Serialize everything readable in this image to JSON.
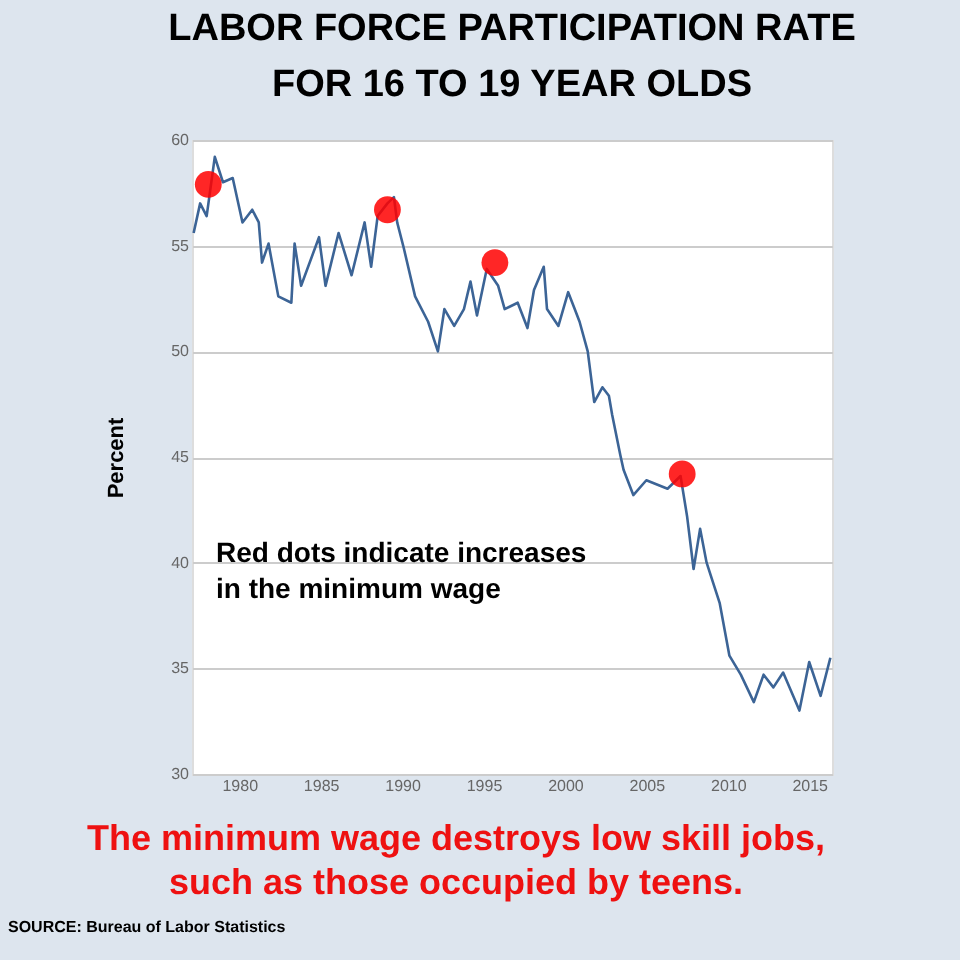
{
  "chart_data": {
    "type": "line",
    "title": [
      "LABOR FORCE PARTICIPATION RATE",
      "FOR 16 TO 19 YEAR OLDS"
    ],
    "ylabel": "Percent",
    "xlim": [
      1977.1,
      2016.4
    ],
    "xticks": [
      1980,
      1985,
      1990,
      1995,
      2000,
      2005,
      2010,
      2015
    ],
    "ylim": [
      30,
      60
    ],
    "yticks": [
      30,
      35,
      40,
      45,
      50,
      55,
      60
    ],
    "grid": "y",
    "series": [
      {
        "color": "#3c6496",
        "marker": "none",
        "line_style": "solid",
        "x": [
          1977.2,
          1977.6,
          1978.0,
          1978.5,
          1979.0,
          1979.6,
          1980.2,
          1980.8,
          1981.2,
          1981.4,
          1981.8,
          1982.4,
          1983.2,
          1983.4,
          1983.8,
          1984.9,
          1985.3,
          1986.1,
          1986.9,
          1987.7,
          1988.1,
          1988.5,
          1989.1,
          1989.5,
          1989.7,
          1990.1,
          1990.8,
          1991.6,
          1992.2,
          1992.6,
          1993.2,
          1993.8,
          1994.2,
          1994.6,
          1995.2,
          1995.9,
          1996.3,
          1997.1,
          1997.7,
          1998.1,
          1998.7,
          1998.9,
          1999.6,
          2000.2,
          2000.6,
          2000.9,
          2001.4,
          2001.8,
          2002.3,
          2002.7,
          2002.9,
          2003.4,
          2003.6,
          2004.2,
          2005.0,
          2006.3,
          2007.1,
          2007.5,
          2007.9,
          2008.3,
          2008.7,
          2009.5,
          2010.1,
          2010.8,
          2011.6,
          2012.2,
          2012.8,
          2013.4,
          2014.4,
          2015.0,
          2015.7,
          2016.3
        ],
        "values": [
          55.6,
          57.0,
          56.4,
          59.2,
          58.0,
          58.2,
          56.1,
          56.7,
          56.1,
          54.2,
          55.1,
          52.6,
          52.3,
          55.1,
          53.1,
          55.4,
          53.1,
          55.6,
          53.6,
          56.1,
          54.0,
          56.4,
          57.0,
          57.3,
          56.1,
          54.9,
          52.6,
          51.4,
          50.0,
          52.0,
          51.2,
          52.0,
          53.3,
          51.7,
          53.9,
          53.1,
          52.0,
          52.3,
          51.1,
          52.9,
          54.0,
          52.0,
          51.2,
          52.8,
          52.0,
          51.4,
          50.0,
          47.6,
          48.3,
          47.9,
          47.0,
          45.1,
          44.4,
          43.2,
          43.9,
          43.5,
          44.1,
          42.2,
          39.7,
          41.6,
          40.0,
          38.1,
          35.6,
          34.7,
          33.4,
          34.7,
          34.1,
          34.8,
          33.0,
          35.3,
          33.7,
          35.5
        ]
      },
      {
        "type": "scatter",
        "color": "#ff0000",
        "marker": "circle",
        "x": [
          1978.1,
          1989.1,
          1995.7,
          2007.2
        ],
        "values": [
          57.9,
          56.7,
          54.2,
          44.2
        ]
      }
    ],
    "annotations": [
      "Red dots indicate increases\nin the minimum wage",
      "The minimum wage destroys low skill jobs,\nsuch as those occupied by teens.",
      "SOURCE: Bureau of Labor Statistics"
    ]
  }
}
